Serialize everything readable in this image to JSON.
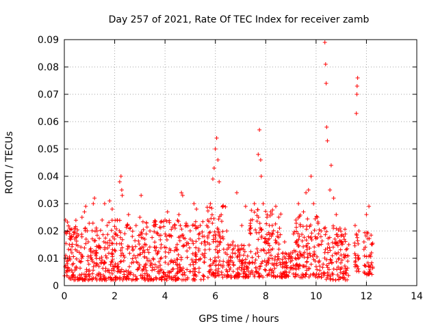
{
  "chart_data": {
    "type": "scatter",
    "title": "Day 257 of 2021, Rate Of TEC Index for receiver zamb",
    "xlabel": "GPS time / hours",
    "ylabel": "ROTI / TECUs",
    "xlim": [
      0,
      14
    ],
    "ylim": [
      0,
      0.09
    ],
    "x_ticks": [
      "0",
      "2",
      "4",
      "6",
      "8",
      "10",
      "12",
      "14"
    ],
    "y_ticks": [
      "0",
      "0.01",
      "0.02",
      "0.03",
      "0.04",
      "0.05",
      "0.06",
      "0.07",
      "0.08",
      "0.09"
    ],
    "x_tick_values": [
      0,
      2,
      4,
      6,
      8,
      10,
      12,
      14
    ],
    "y_tick_values": [
      0,
      0.01,
      0.02,
      0.03,
      0.04,
      0.05,
      0.06,
      0.07,
      0.08,
      0.09
    ],
    "grid": true,
    "marker": "plus",
    "color": "#ff0000",
    "series": [
      {
        "name": "",
        "points": [
          [
            0.05,
            0.024
          ],
          [
            0.08,
            0.019
          ],
          [
            0.12,
            0.008
          ],
          [
            0.2,
            0.015
          ],
          [
            0.3,
            0.012
          ],
          [
            0.4,
            0.021
          ],
          [
            0.5,
            0.018
          ],
          [
            0.6,
            0.009
          ],
          [
            0.7,
            0.025
          ],
          [
            0.8,
            0.027
          ],
          [
            0.85,
            0.029
          ],
          [
            0.95,
            0.016
          ],
          [
            1.05,
            0.011
          ],
          [
            1.15,
            0.03
          ],
          [
            1.2,
            0.032
          ],
          [
            1.3,
            0.02
          ],
          [
            1.4,
            0.014
          ],
          [
            1.5,
            0.024
          ],
          [
            1.6,
            0.03
          ],
          [
            1.7,
            0.022
          ],
          [
            1.8,
            0.031
          ],
          [
            1.9,
            0.028
          ],
          [
            2.0,
            0.013
          ],
          [
            2.1,
            0.024
          ],
          [
            2.2,
            0.038
          ],
          [
            2.25,
            0.04
          ],
          [
            2.28,
            0.035
          ],
          [
            2.3,
            0.033
          ],
          [
            2.4,
            0.019
          ],
          [
            2.55,
            0.026
          ],
          [
            2.7,
            0.018
          ],
          [
            2.85,
            0.022
          ],
          [
            3.0,
            0.025
          ],
          [
            3.05,
            0.033
          ],
          [
            3.2,
            0.017
          ],
          [
            3.4,
            0.02
          ],
          [
            3.55,
            0.022
          ],
          [
            3.7,
            0.019
          ],
          [
            3.85,
            0.015
          ],
          [
            4.0,
            0.024
          ],
          [
            4.1,
            0.027
          ],
          [
            4.25,
            0.018
          ],
          [
            4.4,
            0.021
          ],
          [
            4.55,
            0.026
          ],
          [
            4.65,
            0.034
          ],
          [
            4.7,
            0.033
          ],
          [
            4.85,
            0.022
          ],
          [
            5.0,
            0.017
          ],
          [
            5.15,
            0.03
          ],
          [
            5.25,
            0.028
          ],
          [
            5.4,
            0.022
          ],
          [
            5.55,
            0.018
          ],
          [
            5.7,
            0.024
          ],
          [
            5.8,
            0.03
          ],
          [
            5.9,
            0.039
          ],
          [
            5.95,
            0.043
          ],
          [
            6.0,
            0.05
          ],
          [
            6.05,
            0.054
          ],
          [
            6.1,
            0.046
          ],
          [
            6.15,
            0.038
          ],
          [
            6.3,
            0.029
          ],
          [
            6.45,
            0.02
          ],
          [
            6.7,
            0.016
          ],
          [
            6.85,
            0.034
          ],
          [
            7.05,
            0.022
          ],
          [
            7.2,
            0.029
          ],
          [
            7.4,
            0.019
          ],
          [
            7.55,
            0.03
          ],
          [
            7.7,
            0.048
          ],
          [
            7.75,
            0.057
          ],
          [
            7.8,
            0.046
          ],
          [
            7.82,
            0.04
          ],
          [
            7.9,
            0.03
          ],
          [
            8.05,
            0.025
          ],
          [
            8.2,
            0.027
          ],
          [
            8.4,
            0.029
          ],
          [
            8.55,
            0.021
          ],
          [
            8.75,
            0.016
          ],
          [
            9.0,
            0.012
          ],
          [
            9.2,
            0.024
          ],
          [
            9.3,
            0.03
          ],
          [
            9.5,
            0.027
          ],
          [
            9.6,
            0.034
          ],
          [
            9.7,
            0.035
          ],
          [
            9.8,
            0.04
          ],
          [
            9.9,
            0.03
          ],
          [
            10.05,
            0.025
          ],
          [
            10.2,
            0.02
          ],
          [
            10.35,
            0.089
          ],
          [
            10.38,
            0.081
          ],
          [
            10.4,
            0.074
          ],
          [
            10.42,
            0.058
          ],
          [
            10.45,
            0.053
          ],
          [
            10.55,
            0.035
          ],
          [
            10.6,
            0.044
          ],
          [
            10.7,
            0.032
          ],
          [
            10.8,
            0.026
          ],
          [
            10.95,
            0.021
          ],
          [
            11.1,
            0.018
          ],
          [
            11.3,
            0.015
          ],
          [
            11.55,
            0.022
          ],
          [
            11.6,
            0.063
          ],
          [
            11.62,
            0.07
          ],
          [
            11.63,
            0.073
          ],
          [
            11.65,
            0.076
          ],
          [
            11.7,
            0.02
          ],
          [
            11.9,
            0.016
          ],
          [
            12.0,
            0.026
          ],
          [
            12.1,
            0.029
          ],
          [
            12.2,
            0.012
          ]
        ]
      }
    ],
    "dense_band": {
      "segments": [
        {
          "x_start": 0.0,
          "x_end": 5.6,
          "y_low": 0.002,
          "y_high": 0.024
        },
        {
          "x_start": 5.6,
          "x_end": 6.4,
          "y_low": 0.003,
          "y_high": 0.03
        },
        {
          "x_start": 6.4,
          "x_end": 7.3,
          "y_low": 0.003,
          "y_high": 0.015
        },
        {
          "x_start": 7.3,
          "x_end": 8.6,
          "y_low": 0.003,
          "y_high": 0.028
        },
        {
          "x_start": 8.6,
          "x_end": 9.1,
          "y_low": 0.003,
          "y_high": 0.012
        },
        {
          "x_start": 9.1,
          "x_end": 10.3,
          "y_low": 0.003,
          "y_high": 0.026
        },
        {
          "x_start": 10.3,
          "x_end": 11.3,
          "y_low": 0.002,
          "y_high": 0.022
        },
        {
          "x_start": 11.5,
          "x_end": 11.7,
          "y_low": 0.005,
          "y_high": 0.02
        },
        {
          "x_start": 11.9,
          "x_end": 12.25,
          "y_low": 0.004,
          "y_high": 0.02
        }
      ],
      "note_count": 1400
    }
  }
}
